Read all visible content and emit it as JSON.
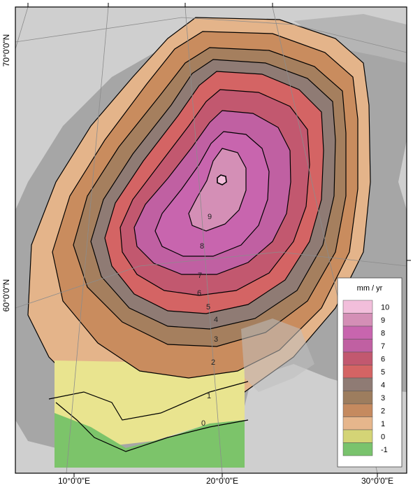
{
  "map": {
    "axes": {
      "top_ticks": [
        "",
        "",
        "",
        ""
      ],
      "bottom_labels": [
        "10°0'0\"E",
        "20°0'0\"E",
        "30°0'0\"E"
      ],
      "left_labels": [
        "70°0'0\"N",
        "60°0'0\"N"
      ]
    },
    "contour_labels": [
      "9",
      "8",
      "7",
      "6",
      "5",
      "4",
      "3",
      "2",
      "1",
      "0"
    ],
    "legend": {
      "title": "mm / yr",
      "items": [
        {
          "label": "10",
          "color": "#f2bedb"
        },
        {
          "label": "9",
          "color": "#d48fb6"
        },
        {
          "label": "8",
          "color": "#c865ae"
        },
        {
          "label": "7",
          "color": "#c060a2"
        },
        {
          "label": "6",
          "color": "#c2586f"
        },
        {
          "label": "5",
          "color": "#d46464"
        },
        {
          "label": "4",
          "color": "#8f7b74"
        },
        {
          "label": "3",
          "color": "#9d7d5e"
        },
        {
          "label": "2",
          "color": "#c58a5f"
        },
        {
          "label": "1",
          "color": "#e6b68c"
        },
        {
          "label": "0",
          "color": "#d4d476"
        },
        {
          "label": "-1",
          "color": "#79c36d"
        }
      ]
    },
    "colors": {
      "sea": "#c8c8c8",
      "land": "#9a9a9a",
      "outline": "#000000"
    }
  }
}
